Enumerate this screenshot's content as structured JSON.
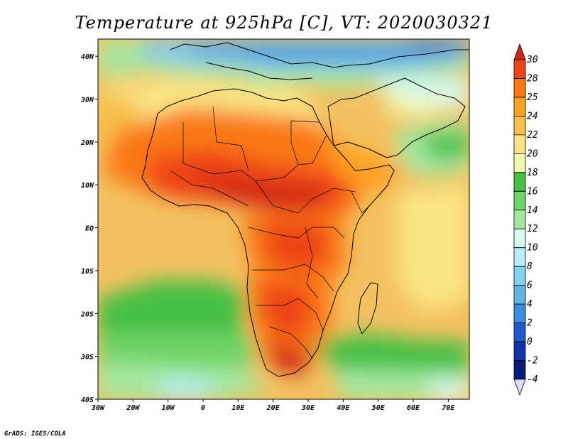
{
  "title": "Temperature at 925hPa [C], VT: 2020030321",
  "credit": "GrADS: IGES/COLA",
  "map": {
    "lon_range": [
      -30,
      76
    ],
    "lat_range": [
      -40,
      44
    ],
    "lon_ticks": [
      "30W",
      "20W",
      "10W",
      "0",
      "10E",
      "20E",
      "30E",
      "40E",
      "50E",
      "60E",
      "70E"
    ],
    "lat_ticks": [
      "40S",
      "30S",
      "20S",
      "10S",
      "EQ",
      "10N",
      "20N",
      "30N",
      "40N"
    ],
    "base_color": "#f3c160"
  },
  "colorbar": {
    "labels": [
      "30",
      "28",
      "25",
      "24",
      "22",
      "20",
      "18",
      "16",
      "14",
      "12",
      "10",
      "8",
      "6",
      "4",
      "2",
      "0",
      "-2",
      "-4"
    ],
    "colors": [
      "#d02818",
      "#ee4414",
      "#fa7814",
      "#fea020",
      "#f6c04a",
      "#fae484",
      "#f0f8b0",
      "#44c044",
      "#70d466",
      "#a4e8a0",
      "#d8f8f0",
      "#b4ecf8",
      "#84d0f0",
      "#60b4e8",
      "#3c8ce0",
      "#1e5ccc",
      "#1034b0",
      "#0a1a7a",
      "#dcdcfa"
    ]
  }
}
